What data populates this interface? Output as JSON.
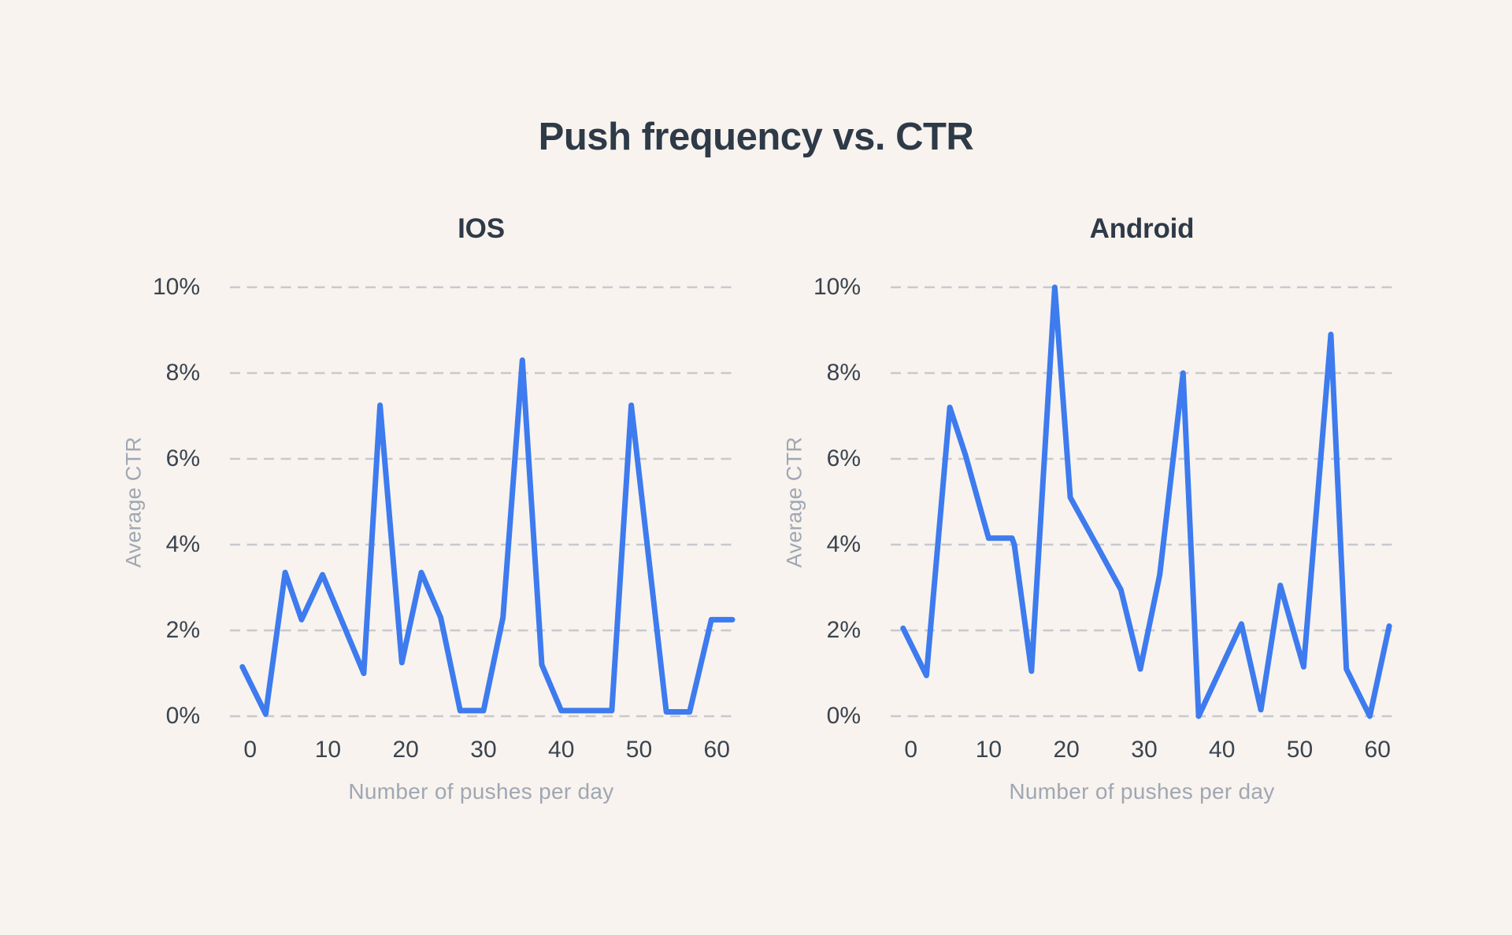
{
  "page": {
    "title": "Push frequency vs. CTR",
    "background": "#f8f3ee",
    "colors": {
      "line": "#3d7bef",
      "grid": "#c7c9cf",
      "heading": "#2e3a48",
      "tick_label": "#3a4450",
      "axis_title": "#9fa7b3"
    }
  },
  "chart_data": [
    {
      "type": "line",
      "title": "IOS",
      "xlabel": "Number of pushes per day",
      "ylabel": "Average CTR",
      "x_ticks": [
        0,
        10,
        20,
        30,
        40,
        50,
        60
      ],
      "y_ticks": [
        0,
        2,
        4,
        6,
        8,
        10
      ],
      "y_tick_suffix": "%",
      "xlim": [
        -2.6,
        62
      ],
      "ylim": [
        0,
        10
      ],
      "grid": "horizontal-dashed",
      "legend": false,
      "line_color": "#3d7bef",
      "points": [
        [
          -1,
          1.15
        ],
        [
          2,
          0.05
        ],
        [
          4.5,
          3.35
        ],
        [
          6.6,
          2.25
        ],
        [
          9.3,
          3.3
        ],
        [
          14.6,
          1.0
        ],
        [
          16.7,
          7.25
        ],
        [
          19.5,
          1.25
        ],
        [
          22,
          3.35
        ],
        [
          24.5,
          2.3
        ],
        [
          27,
          0.13
        ],
        [
          30,
          0.13
        ],
        [
          32.5,
          2.3
        ],
        [
          35,
          8.3
        ],
        [
          37.5,
          1.2
        ],
        [
          40,
          0.13
        ],
        [
          46.5,
          0.13
        ],
        [
          49,
          7.25
        ],
        [
          53.5,
          0.1
        ],
        [
          56.5,
          0.1
        ],
        [
          59.3,
          2.25
        ],
        [
          62,
          2.25
        ]
      ]
    },
    {
      "type": "line",
      "title": "Android",
      "xlabel": "Number of pushes per day",
      "ylabel": "Average CTR",
      "x_ticks": [
        0,
        10,
        20,
        30,
        40,
        50,
        60
      ],
      "y_ticks": [
        0,
        2,
        4,
        6,
        8,
        10
      ],
      "y_tick_suffix": "%",
      "xlim": [
        -2.6,
        62
      ],
      "ylim": [
        0,
        10
      ],
      "grid": "horizontal-dashed",
      "legend": false,
      "line_color": "#3d7bef",
      "points": [
        [
          -1,
          2.05
        ],
        [
          2,
          0.95
        ],
        [
          5,
          7.2
        ],
        [
          7,
          6.1
        ],
        [
          10,
          4.15
        ],
        [
          13,
          4.15
        ],
        [
          13.3,
          4.0
        ],
        [
          15.5,
          1.05
        ],
        [
          18.5,
          10.0
        ],
        [
          20.5,
          5.1
        ],
        [
          24,
          3.95
        ],
        [
          27,
          2.95
        ],
        [
          29.5,
          1.1
        ],
        [
          32,
          3.3
        ],
        [
          35,
          8.0
        ],
        [
          37,
          0.0
        ],
        [
          42.5,
          2.15
        ],
        [
          45,
          0.15
        ],
        [
          47.5,
          3.05
        ],
        [
          50.5,
          1.15
        ],
        [
          54,
          8.9
        ],
        [
          56,
          1.1
        ],
        [
          59,
          0.0
        ],
        [
          61.5,
          2.1
        ]
      ]
    }
  ]
}
